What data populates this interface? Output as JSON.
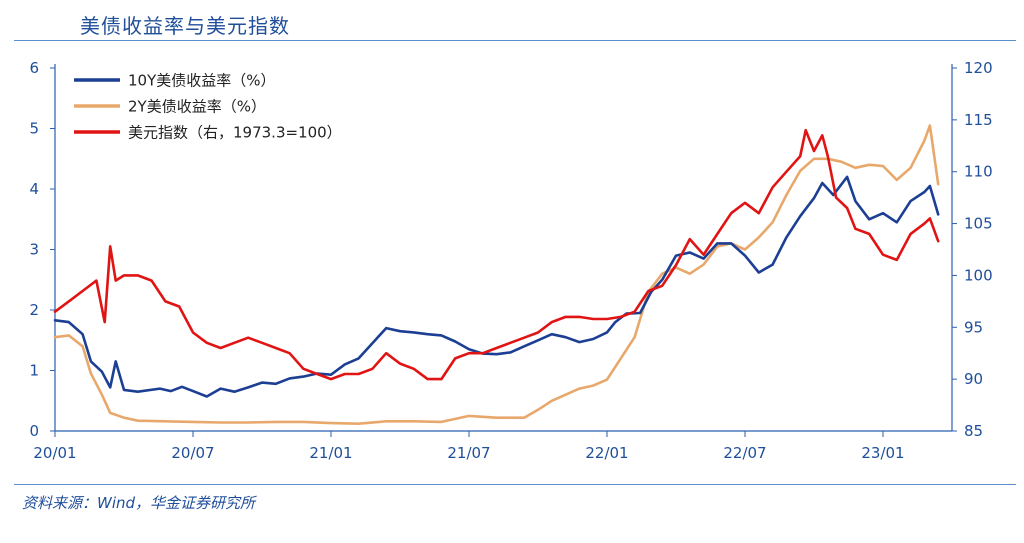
{
  "title": "美债收益率与美元指数",
  "source": "资料来源：Wind，华金证券研究所",
  "chart_data": {
    "type": "line",
    "left_axis": {
      "min": 0,
      "max": 6,
      "ticks": [
        "0",
        "1",
        "2",
        "3",
        "4",
        "5",
        "6"
      ]
    },
    "right_axis": {
      "min": 85,
      "max": 120,
      "ticks": [
        "85",
        "90",
        "95",
        "100",
        "105",
        "110",
        "115",
        "120"
      ]
    },
    "x_axis": {
      "min": 2020.0,
      "max": 2023.25,
      "ticks": [
        {
          "label": "20/01",
          "value": 2020.0
        },
        {
          "label": "20/07",
          "value": 2020.5
        },
        {
          "label": "21/01",
          "value": 2021.0
        },
        {
          "label": "21/07",
          "value": 2021.5
        },
        {
          "label": "22/01",
          "value": 2022.0
        },
        {
          "label": "22/07",
          "value": 2022.5
        },
        {
          "label": "23/01",
          "value": 2023.0
        }
      ]
    },
    "legend_position": "top-left",
    "series": [
      {
        "name": "10Y美债收益率（%）",
        "axis": "left",
        "color": "#1c3f94",
        "points": [
          [
            2020.0,
            1.83
          ],
          [
            2020.05,
            1.8
          ],
          [
            2020.1,
            1.6
          ],
          [
            2020.13,
            1.15
          ],
          [
            2020.17,
            0.98
          ],
          [
            2020.2,
            0.72
          ],
          [
            2020.22,
            1.15
          ],
          [
            2020.25,
            0.68
          ],
          [
            2020.3,
            0.65
          ],
          [
            2020.38,
            0.7
          ],
          [
            2020.42,
            0.66
          ],
          [
            2020.46,
            0.73
          ],
          [
            2020.5,
            0.66
          ],
          [
            2020.55,
            0.57
          ],
          [
            2020.6,
            0.7
          ],
          [
            2020.65,
            0.65
          ],
          [
            2020.7,
            0.72
          ],
          [
            2020.75,
            0.8
          ],
          [
            2020.8,
            0.78
          ],
          [
            2020.85,
            0.87
          ],
          [
            2020.9,
            0.9
          ],
          [
            2020.95,
            0.95
          ],
          [
            2021.0,
            0.93
          ],
          [
            2021.05,
            1.1
          ],
          [
            2021.1,
            1.2
          ],
          [
            2021.15,
            1.45
          ],
          [
            2021.2,
            1.7
          ],
          [
            2021.25,
            1.65
          ],
          [
            2021.3,
            1.63
          ],
          [
            2021.35,
            1.6
          ],
          [
            2021.4,
            1.58
          ],
          [
            2021.45,
            1.48
          ],
          [
            2021.5,
            1.35
          ],
          [
            2021.55,
            1.28
          ],
          [
            2021.6,
            1.27
          ],
          [
            2021.65,
            1.3
          ],
          [
            2021.7,
            1.4
          ],
          [
            2021.75,
            1.5
          ],
          [
            2021.8,
            1.6
          ],
          [
            2021.85,
            1.55
          ],
          [
            2021.9,
            1.47
          ],
          [
            2021.95,
            1.52
          ],
          [
            2022.0,
            1.63
          ],
          [
            2022.03,
            1.8
          ],
          [
            2022.07,
            1.94
          ],
          [
            2022.12,
            1.95
          ],
          [
            2022.16,
            2.3
          ],
          [
            2022.2,
            2.5
          ],
          [
            2022.25,
            2.9
          ],
          [
            2022.3,
            2.95
          ],
          [
            2022.35,
            2.85
          ],
          [
            2022.4,
            3.1
          ],
          [
            2022.45,
            3.1
          ],
          [
            2022.5,
            2.9
          ],
          [
            2022.55,
            2.62
          ],
          [
            2022.6,
            2.75
          ],
          [
            2022.65,
            3.2
          ],
          [
            2022.7,
            3.55
          ],
          [
            2022.75,
            3.85
          ],
          [
            2022.78,
            4.1
          ],
          [
            2022.82,
            3.9
          ],
          [
            2022.87,
            4.2
          ],
          [
            2022.9,
            3.8
          ],
          [
            2022.95,
            3.5
          ],
          [
            2023.0,
            3.6
          ],
          [
            2023.05,
            3.45
          ],
          [
            2023.1,
            3.8
          ],
          [
            2023.15,
            3.95
          ],
          [
            2023.17,
            4.05
          ],
          [
            2023.2,
            3.58
          ]
        ]
      },
      {
        "name": "2Y美债收益率（%）",
        "axis": "left",
        "color": "#e8a86c",
        "points": [
          [
            2020.0,
            1.55
          ],
          [
            2020.05,
            1.58
          ],
          [
            2020.1,
            1.4
          ],
          [
            2020.13,
            0.95
          ],
          [
            2020.17,
            0.6
          ],
          [
            2020.2,
            0.3
          ],
          [
            2020.25,
            0.22
          ],
          [
            2020.3,
            0.17
          ],
          [
            2020.4,
            0.16
          ],
          [
            2020.5,
            0.15
          ],
          [
            2020.6,
            0.14
          ],
          [
            2020.7,
            0.14
          ],
          [
            2020.8,
            0.15
          ],
          [
            2020.9,
            0.15
          ],
          [
            2021.0,
            0.13
          ],
          [
            2021.1,
            0.12
          ],
          [
            2021.2,
            0.16
          ],
          [
            2021.3,
            0.16
          ],
          [
            2021.4,
            0.15
          ],
          [
            2021.45,
            0.2
          ],
          [
            2021.5,
            0.25
          ],
          [
            2021.6,
            0.22
          ],
          [
            2021.7,
            0.22
          ],
          [
            2021.75,
            0.35
          ],
          [
            2021.8,
            0.5
          ],
          [
            2021.85,
            0.6
          ],
          [
            2021.9,
            0.7
          ],
          [
            2021.95,
            0.75
          ],
          [
            2022.0,
            0.85
          ],
          [
            2022.05,
            1.2
          ],
          [
            2022.1,
            1.55
          ],
          [
            2022.15,
            2.3
          ],
          [
            2022.2,
            2.6
          ],
          [
            2022.25,
            2.7
          ],
          [
            2022.3,
            2.6
          ],
          [
            2022.35,
            2.75
          ],
          [
            2022.4,
            3.05
          ],
          [
            2022.45,
            3.1
          ],
          [
            2022.5,
            3.0
          ],
          [
            2022.55,
            3.2
          ],
          [
            2022.6,
            3.45
          ],
          [
            2022.65,
            3.9
          ],
          [
            2022.7,
            4.3
          ],
          [
            2022.75,
            4.5
          ],
          [
            2022.8,
            4.5
          ],
          [
            2022.85,
            4.45
          ],
          [
            2022.9,
            4.35
          ],
          [
            2022.95,
            4.4
          ],
          [
            2023.0,
            4.38
          ],
          [
            2023.05,
            4.15
          ],
          [
            2023.1,
            4.35
          ],
          [
            2023.15,
            4.8
          ],
          [
            2023.17,
            5.05
          ],
          [
            2023.2,
            4.08
          ]
        ]
      },
      {
        "name": "美元指数（右，1973.3=100）",
        "axis": "right",
        "color": "#e11414",
        "points": [
          [
            2020.0,
            96.5
          ],
          [
            2020.05,
            97.5
          ],
          [
            2020.1,
            98.5
          ],
          [
            2020.15,
            99.5
          ],
          [
            2020.18,
            95.5
          ],
          [
            2020.2,
            102.8
          ],
          [
            2020.22,
            99.5
          ],
          [
            2020.25,
            100.0
          ],
          [
            2020.3,
            100.0
          ],
          [
            2020.35,
            99.5
          ],
          [
            2020.4,
            97.5
          ],
          [
            2020.45,
            97.0
          ],
          [
            2020.5,
            94.5
          ],
          [
            2020.55,
            93.5
          ],
          [
            2020.6,
            93.0
          ],
          [
            2020.65,
            93.5
          ],
          [
            2020.7,
            94.0
          ],
          [
            2020.75,
            93.5
          ],
          [
            2020.8,
            93.0
          ],
          [
            2020.85,
            92.5
          ],
          [
            2020.9,
            91.0
          ],
          [
            2020.95,
            90.5
          ],
          [
            2021.0,
            90.0
          ],
          [
            2021.05,
            90.5
          ],
          [
            2021.1,
            90.5
          ],
          [
            2021.15,
            91.0
          ],
          [
            2021.2,
            92.5
          ],
          [
            2021.25,
            91.5
          ],
          [
            2021.3,
            91.0
          ],
          [
            2021.35,
            90.0
          ],
          [
            2021.4,
            90.0
          ],
          [
            2021.45,
            92.0
          ],
          [
            2021.5,
            92.5
          ],
          [
            2021.55,
            92.5
          ],
          [
            2021.6,
            93.0
          ],
          [
            2021.65,
            93.5
          ],
          [
            2021.7,
            94.0
          ],
          [
            2021.75,
            94.5
          ],
          [
            2021.8,
            95.5
          ],
          [
            2021.85,
            96.0
          ],
          [
            2021.9,
            96.0
          ],
          [
            2021.95,
            95.8
          ],
          [
            2022.0,
            95.8
          ],
          [
            2022.05,
            96.0
          ],
          [
            2022.1,
            96.5
          ],
          [
            2022.15,
            98.5
          ],
          [
            2022.2,
            99.0
          ],
          [
            2022.25,
            101.0
          ],
          [
            2022.3,
            103.5
          ],
          [
            2022.35,
            102.0
          ],
          [
            2022.4,
            104.0
          ],
          [
            2022.45,
            106.0
          ],
          [
            2022.5,
            107.0
          ],
          [
            2022.55,
            106.0
          ],
          [
            2022.6,
            108.5
          ],
          [
            2022.65,
            110.0
          ],
          [
            2022.7,
            111.5
          ],
          [
            2022.72,
            114.0
          ],
          [
            2022.75,
            112.0
          ],
          [
            2022.78,
            113.5
          ],
          [
            2022.8,
            111.5
          ],
          [
            2022.83,
            107.5
          ],
          [
            2022.87,
            106.5
          ],
          [
            2022.9,
            104.5
          ],
          [
            2022.95,
            104.0
          ],
          [
            2023.0,
            102.0
          ],
          [
            2023.05,
            101.5
          ],
          [
            2023.1,
            104.0
          ],
          [
            2023.15,
            105.0
          ],
          [
            2023.17,
            105.5
          ],
          [
            2023.2,
            103.3
          ]
        ]
      }
    ]
  }
}
